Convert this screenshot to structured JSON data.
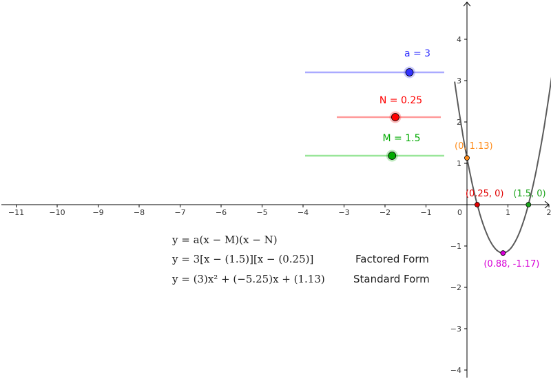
{
  "graph": {
    "x_ticks": [
      {
        "v": -11,
        "t": "−11"
      },
      {
        "v": -10,
        "t": "−10"
      },
      {
        "v": -9,
        "t": "−9"
      },
      {
        "v": -8,
        "t": "−8"
      },
      {
        "v": -7,
        "t": "−7"
      },
      {
        "v": -6,
        "t": "−6"
      },
      {
        "v": -5,
        "t": "−5"
      },
      {
        "v": -4,
        "t": "−4"
      },
      {
        "v": -3,
        "t": "−3"
      },
      {
        "v": -2,
        "t": "−2"
      },
      {
        "v": -1,
        "t": "−1"
      },
      {
        "v": 1,
        "t": "1"
      },
      {
        "v": 2,
        "t": "2"
      }
    ],
    "y_ticks": [
      {
        "v": 4,
        "t": "4"
      },
      {
        "v": 3,
        "t": "3"
      },
      {
        "v": 2,
        "t": "2"
      },
      {
        "v": 1,
        "t": "1"
      },
      {
        "v": -1,
        "t": "−1"
      },
      {
        "v": -2,
        "t": "−2"
      },
      {
        "v": -3,
        "t": "−3"
      },
      {
        "v": -4,
        "t": "−4"
      }
    ],
    "origin_label": "0",
    "parabola": {
      "a": 3,
      "b": -5.25,
      "c": 1.13,
      "color": "#5a5a5a"
    }
  },
  "sliders": [
    {
      "name": "a",
      "label": "a = 3",
      "value": 3,
      "min": 0,
      "max": 4,
      "color": "#3333ff",
      "track_color": "#aaaaff",
      "key": "slider-a"
    },
    {
      "name": "N",
      "label": "N = 0.25",
      "value": 0.25,
      "min": -2,
      "max": 2,
      "color": "#ff0000",
      "track_color": "#ff9a9a",
      "key": "slider-n"
    },
    {
      "name": "M",
      "label": "M = 1.5",
      "value": 1.5,
      "min": -1,
      "max": 3,
      "color": "#00aa00",
      "track_color": "#99e699",
      "key": "slider-m"
    }
  ],
  "points": [
    {
      "key": "y-intercept",
      "x": 0,
      "y": 1.13,
      "label": "(0, 1.13)",
      "color": "#ff8c1a"
    },
    {
      "key": "root-n",
      "x": 0.25,
      "y": 0,
      "label": "(0.25, 0)",
      "color": "#e00000"
    },
    {
      "key": "root-m",
      "x": 1.5,
      "y": 0,
      "label": "(1.5, 0)",
      "color": "#1aa31a"
    },
    {
      "key": "vertex",
      "x": 0.88,
      "y": -1.17,
      "label": "(0.88, -1.17)",
      "color": "#d600d6"
    }
  ],
  "equations": {
    "general": "y = a(x − M)(x − N)",
    "factored": "y = 3[x − (1.5)][x − (0.25)]",
    "factored_tag": "Factored Form",
    "standard": "y = (3)x² + (−5.25)x + (1.13)",
    "standard_tag": "Standard Form"
  }
}
